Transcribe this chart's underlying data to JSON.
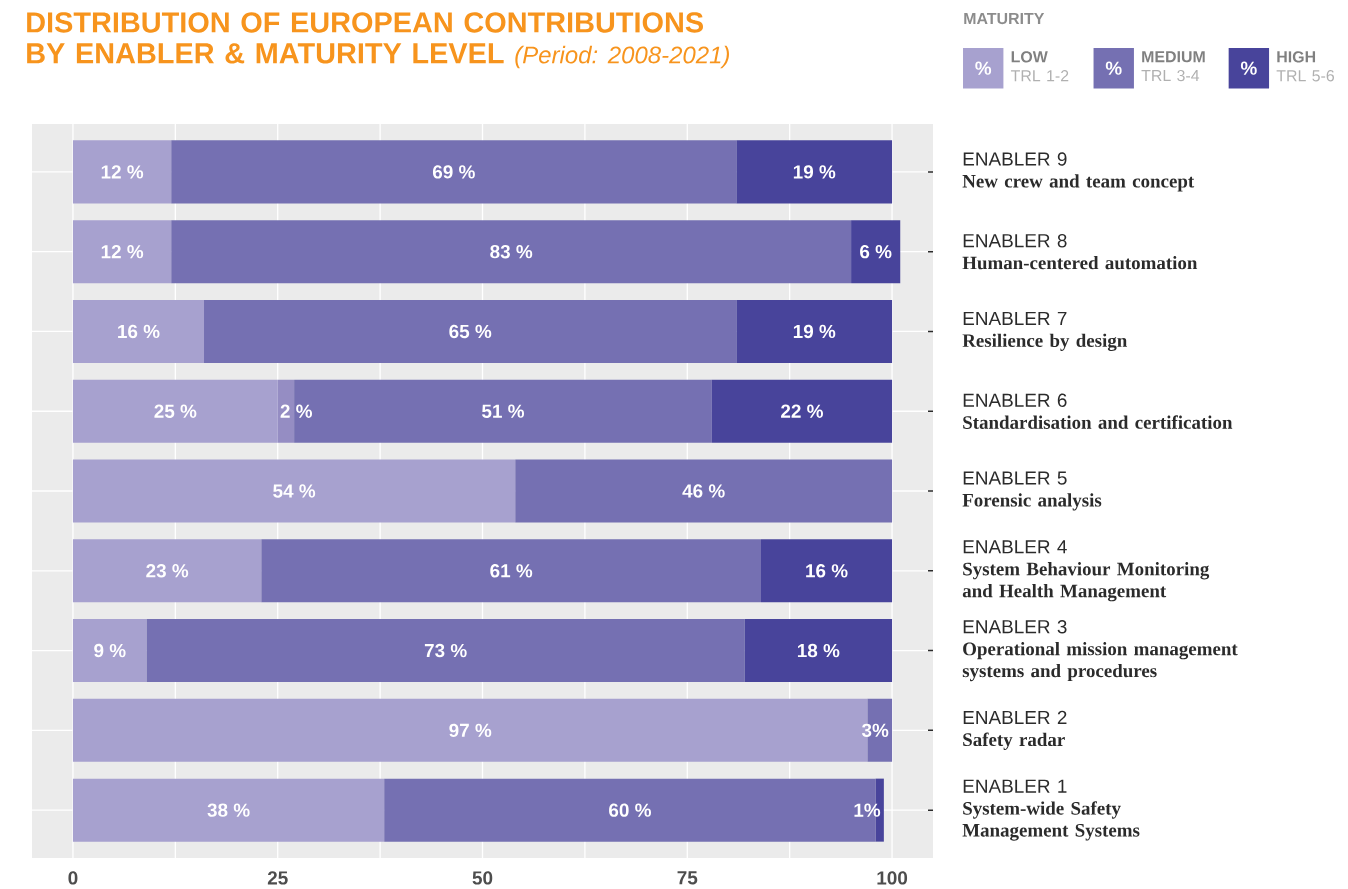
{
  "chart_data": {
    "type": "bar",
    "orientation": "horizontal",
    "stacked": true,
    "title": "DISTRIBUTION OF EUROPEAN CONTRIBUTIONS BY ENABLER & MATURITY LEVEL *(Period: 2008-2021)*",
    "legend_title": "MATURITY",
    "annotations": [
      "%",
      "%",
      "%"
    ],
    "categories": [
      "ENABLER 9\n**New crew and team concept**",
      "ENABLER 8\n**Human-centered automation**",
      "ENABLER 7\n**Resilience by design**",
      "ENABLER 6\n**Standardisation and certification**",
      "ENABLER 5\n**Forensic analysis**",
      "ENABLER 4\n**System Behaviour Monitoring**\n**and Health Management**",
      "ENABLER 3\n**Operational mission management**\n**systems and procedures**",
      "ENABLER 2\n**Safety radar**",
      "ENABLER 1\n**System-wide Safety**\n**Management Systems**"
    ],
    "series": [
      {
        "name": "**LOW**\nTRL 1-2",
        "color": "#a7a1cf",
        "values": [
          12,
          12,
          16,
          25,
          54,
          23,
          9,
          97,
          38
        ],
        "value_labels": [
          "12 %",
          "12 %",
          "16 %",
          "25 %",
          "54 %",
          "23 %",
          "9 %",
          "97 %",
          "38 %"
        ]
      },
      {
        "color": "#958dc3",
        "values": [
          null,
          null,
          null,
          2,
          null,
          null,
          null,
          null,
          null
        ],
        "value_labels": [
          null,
          null,
          null,
          "2 %",
          null,
          null,
          null,
          null,
          null
        ]
      },
      {
        "name": "**MEDIUM**\nTRL 3-4",
        "color": "#7570b2",
        "values": [
          69,
          83,
          65,
          51,
          46,
          61,
          73,
          3,
          60
        ],
        "value_labels": [
          "69 %",
          "83 %",
          "65 %",
          "51 %",
          "46 %",
          "61 %",
          "73 %",
          "3%",
          "60 %"
        ]
      },
      {
        "name": "**HIGH**\nTRL 5-6",
        "color": "#48449b",
        "values": [
          19,
          6,
          19,
          22,
          null,
          16,
          18,
          null,
          1
        ],
        "value_labels": [
          "19 %",
          "6 %",
          "19 %",
          "22 %",
          null,
          "16 %",
          "18 %",
          null,
          "1%"
        ]
      }
    ],
    "xlim": [
      -5,
      105
    ],
    "xticks": [
      0,
      25,
      50,
      75,
      100
    ],
    "grid": true,
    "legend": "top right"
  }
}
